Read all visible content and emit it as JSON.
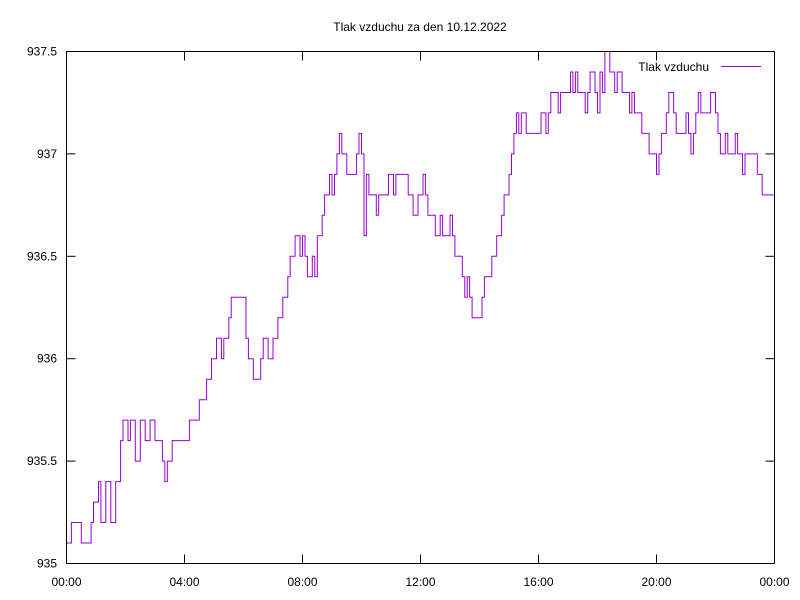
{
  "chart_data": {
    "type": "line",
    "title": "Tlak vzduchu za den 10.12.2022",
    "xlabel": "",
    "ylabel": "",
    "xlim": [
      "00:00",
      "24:00"
    ],
    "ylim": [
      935,
      937.5
    ],
    "x_ticks": [
      "00:00",
      "04:00",
      "08:00",
      "12:00",
      "16:00",
      "20:00",
      "00:00"
    ],
    "y_ticks": [
      "935",
      "935.5",
      "936",
      "936.5",
      "937",
      "937.5"
    ],
    "grid": false,
    "legend": {
      "position": "top-right",
      "entries": [
        "Tlak vzduchu"
      ]
    },
    "series": [
      {
        "name": "Tlak vzduchu",
        "color": "#9400d3",
        "points": [
          [
            "00:00",
            935.1
          ],
          [
            "00:10",
            935.2
          ],
          [
            "00:25",
            935.2
          ],
          [
            "00:30",
            935.1
          ],
          [
            "00:45",
            935.1
          ],
          [
            "00:50",
            935.2
          ],
          [
            "00:55",
            935.3
          ],
          [
            "01:05",
            935.4
          ],
          [
            "01:10",
            935.2
          ],
          [
            "01:20",
            935.4
          ],
          [
            "01:30",
            935.2
          ],
          [
            "01:40",
            935.4
          ],
          [
            "01:50",
            935.6
          ],
          [
            "01:55",
            935.7
          ],
          [
            "02:05",
            935.6
          ],
          [
            "02:10",
            935.7
          ],
          [
            "02:20",
            935.5
          ],
          [
            "02:30",
            935.7
          ],
          [
            "02:40",
            935.6
          ],
          [
            "02:50",
            935.7
          ],
          [
            "03:00",
            935.6
          ],
          [
            "03:15",
            935.5
          ],
          [
            "03:20",
            935.4
          ],
          [
            "03:25",
            935.5
          ],
          [
            "03:35",
            935.6
          ],
          [
            "03:50",
            935.6
          ],
          [
            "04:00",
            935.6
          ],
          [
            "04:10",
            935.7
          ],
          [
            "04:20",
            935.7
          ],
          [
            "04:30",
            935.8
          ],
          [
            "04:40",
            935.8
          ],
          [
            "04:45",
            935.9
          ],
          [
            "04:55",
            936.0
          ],
          [
            "05:05",
            936.1
          ],
          [
            "05:15",
            936.0
          ],
          [
            "05:20",
            936.1
          ],
          [
            "05:30",
            936.2
          ],
          [
            "05:35",
            936.3
          ],
          [
            "06:00",
            936.3
          ],
          [
            "06:05",
            936.1
          ],
          [
            "06:10",
            936.0
          ],
          [
            "06:20",
            935.9
          ],
          [
            "06:30",
            935.9
          ],
          [
            "06:35",
            936.0
          ],
          [
            "06:40",
            936.1
          ],
          [
            "06:50",
            936.0
          ],
          [
            "06:55",
            936.0
          ],
          [
            "07:00",
            936.1
          ],
          [
            "07:10",
            936.2
          ],
          [
            "07:20",
            936.3
          ],
          [
            "07:30",
            936.4
          ],
          [
            "07:35",
            936.5
          ],
          [
            "07:45",
            936.6
          ],
          [
            "07:55",
            936.5
          ],
          [
            "08:00",
            936.6
          ],
          [
            "08:05",
            936.5
          ],
          [
            "08:10",
            936.4
          ],
          [
            "08:20",
            936.5
          ],
          [
            "08:25",
            936.4
          ],
          [
            "08:30",
            936.6
          ],
          [
            "08:40",
            936.7
          ],
          [
            "08:45",
            936.8
          ],
          [
            "08:55",
            936.9
          ],
          [
            "09:00",
            936.8
          ],
          [
            "09:05",
            936.9
          ],
          [
            "09:10",
            937.0
          ],
          [
            "09:15",
            937.1
          ],
          [
            "09:20",
            937.0
          ],
          [
            "09:30",
            936.9
          ],
          [
            "09:40",
            936.9
          ],
          [
            "09:50",
            937.0
          ],
          [
            "09:55",
            937.1
          ],
          [
            "10:00",
            937.0
          ],
          [
            "10:05",
            936.6
          ],
          [
            "10:10",
            936.9
          ],
          [
            "10:15",
            936.8
          ],
          [
            "10:25",
            936.8
          ],
          [
            "10:30",
            936.7
          ],
          [
            "10:35",
            936.8
          ],
          [
            "10:45",
            936.8
          ],
          [
            "10:55",
            936.9
          ],
          [
            "11:05",
            936.8
          ],
          [
            "11:10",
            936.9
          ],
          [
            "11:30",
            936.9
          ],
          [
            "11:35",
            936.8
          ],
          [
            "11:45",
            936.7
          ],
          [
            "11:55",
            936.8
          ],
          [
            "12:05",
            936.9
          ],
          [
            "12:10",
            936.8
          ],
          [
            "12:15",
            936.7
          ],
          [
            "12:25",
            936.7
          ],
          [
            "12:30",
            936.6
          ],
          [
            "12:40",
            936.7
          ],
          [
            "12:45",
            936.6
          ],
          [
            "12:55",
            936.6
          ],
          [
            "13:00",
            936.7
          ],
          [
            "13:05",
            936.6
          ],
          [
            "13:10",
            936.5
          ],
          [
            "13:20",
            936.5
          ],
          [
            "13:25",
            936.4
          ],
          [
            "13:30",
            936.3
          ],
          [
            "13:35",
            936.4
          ],
          [
            "13:40",
            936.3
          ],
          [
            "13:45",
            936.2
          ],
          [
            "14:00",
            936.2
          ],
          [
            "14:05",
            936.3
          ],
          [
            "14:10",
            936.4
          ],
          [
            "14:20",
            936.4
          ],
          [
            "14:25",
            936.5
          ],
          [
            "14:35",
            936.6
          ],
          [
            "14:45",
            936.7
          ],
          [
            "14:50",
            936.8
          ],
          [
            "15:00",
            936.9
          ],
          [
            "15:05",
            937.0
          ],
          [
            "15:10",
            937.1
          ],
          [
            "15:15",
            937.2
          ],
          [
            "15:20",
            937.1
          ],
          [
            "15:25",
            937.2
          ],
          [
            "15:35",
            937.1
          ],
          [
            "15:45",
            937.1
          ],
          [
            "15:55",
            937.1
          ],
          [
            "16:05",
            937.2
          ],
          [
            "16:15",
            937.1
          ],
          [
            "16:20",
            937.2
          ],
          [
            "16:25",
            937.3
          ],
          [
            "16:35",
            937.3
          ],
          [
            "16:40",
            937.2
          ],
          [
            "16:45",
            937.3
          ],
          [
            "16:55",
            937.3
          ],
          [
            "17:05",
            937.4
          ],
          [
            "17:10",
            937.3
          ],
          [
            "17:15",
            937.4
          ],
          [
            "17:20",
            937.3
          ],
          [
            "17:30",
            937.3
          ],
          [
            "17:35",
            937.2
          ],
          [
            "17:40",
            937.3
          ],
          [
            "17:45",
            937.4
          ],
          [
            "17:55",
            937.3
          ],
          [
            "18:00",
            937.2
          ],
          [
            "18:05",
            937.4
          ],
          [
            "18:10",
            937.3
          ],
          [
            "18:15",
            937.5
          ],
          [
            "18:25",
            937.4
          ],
          [
            "18:35",
            937.3
          ],
          [
            "18:40",
            937.4
          ],
          [
            "18:50",
            937.3
          ],
          [
            "19:00",
            937.3
          ],
          [
            "19:05",
            937.2
          ],
          [
            "19:10",
            937.3
          ],
          [
            "19:15",
            937.2
          ],
          [
            "19:25",
            937.2
          ],
          [
            "19:30",
            937.1
          ],
          [
            "19:40",
            937.1
          ],
          [
            "19:45",
            937.0
          ],
          [
            "19:50",
            937.0
          ],
          [
            "20:00",
            936.9
          ],
          [
            "20:05",
            937.0
          ],
          [
            "20:10",
            937.1
          ],
          [
            "20:20",
            937.2
          ],
          [
            "20:25",
            937.3
          ],
          [
            "20:35",
            937.2
          ],
          [
            "20:40",
            937.1
          ],
          [
            "20:50",
            937.1
          ],
          [
            "21:00",
            937.2
          ],
          [
            "21:05",
            937.1
          ],
          [
            "21:10",
            937.0
          ],
          [
            "21:15",
            937.1
          ],
          [
            "21:20",
            937.2
          ],
          [
            "21:25",
            937.3
          ],
          [
            "21:30",
            937.2
          ],
          [
            "21:40",
            937.2
          ],
          [
            "21:50",
            937.3
          ],
          [
            "22:00",
            937.2
          ],
          [
            "22:05",
            937.1
          ],
          [
            "22:10",
            937.0
          ],
          [
            "22:20",
            937.1
          ],
          [
            "22:25",
            937.0
          ],
          [
            "22:35",
            937.0
          ],
          [
            "22:40",
            937.1
          ],
          [
            "22:45",
            937.0
          ],
          [
            "22:50",
            937.0
          ],
          [
            "22:55",
            936.9
          ],
          [
            "23:00",
            937.0
          ],
          [
            "23:10",
            937.0
          ],
          [
            "23:20",
            937.0
          ],
          [
            "23:25",
            936.9
          ],
          [
            "23:35",
            936.8
          ],
          [
            "23:59",
            936.8
          ]
        ]
      }
    ]
  }
}
